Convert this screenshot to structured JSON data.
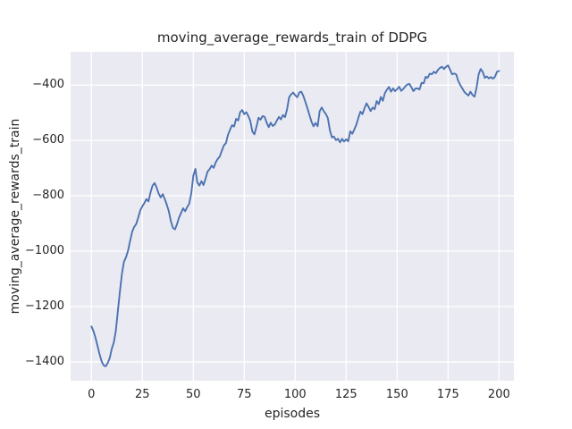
{
  "figure": {
    "title": "moving_average_rewards_train of DDPG",
    "xlabel": "episodes",
    "ylabel": "moving_average_rewards_train"
  },
  "chart_data": {
    "type": "line",
    "title": "moving_average_rewards_train of DDPG",
    "xlabel": "episodes",
    "ylabel": "moving_average_rewards_train",
    "style": "seaborn-darkgrid",
    "grid": true,
    "legend": "none",
    "xlim": [
      -10.2,
      207.3
    ],
    "ylim": [
      -1468,
      -280
    ],
    "x_tick_values": [
      0,
      25,
      50,
      75,
      100,
      125,
      150,
      175,
      200
    ],
    "x_tick_labels": [
      "0",
      "25",
      "50",
      "75",
      "100",
      "125",
      "150",
      "175",
      "200"
    ],
    "y_tick_values": [
      -400,
      -600,
      -800,
      -1000,
      -1200,
      -1400
    ],
    "y_tick_labels": [
      "−400",
      "−600",
      "−800",
      "−1000",
      "−1200",
      "−1400"
    ],
    "colors": {
      "line": "#4C72B0",
      "plot_background": "#EAEAF2",
      "gridline": "#FFFFFF",
      "text": "#262626",
      "figure_background": "#FFFFFF"
    },
    "series": [
      {
        "name": "moving_average_rewards_train",
        "color": "#4C72B0",
        "x": [
          0,
          1,
          2,
          3,
          4,
          5,
          6,
          7,
          8,
          9,
          10,
          11,
          12,
          13,
          14,
          15,
          16,
          17,
          18,
          19,
          20,
          21,
          22,
          23,
          24,
          25,
          26,
          27,
          28,
          29,
          30,
          31,
          32,
          33,
          34,
          35,
          36,
          37,
          38,
          39,
          40,
          41,
          42,
          43,
          44,
          45,
          46,
          47,
          48,
          49,
          50,
          51,
          52,
          53,
          54,
          55,
          56,
          57,
          58,
          59,
          60,
          61,
          62,
          63,
          64,
          65,
          66,
          67,
          68,
          69,
          70,
          71,
          72,
          73,
          74,
          75,
          76,
          77,
          78,
          79,
          80,
          81,
          82,
          83,
          84,
          85,
          86,
          87,
          88,
          89,
          90,
          91,
          92,
          93,
          94,
          95,
          96,
          97,
          98,
          99,
          100,
          101,
          102,
          103,
          104,
          105,
          106,
          107,
          108,
          109,
          110,
          111,
          112,
          113,
          114,
          115,
          116,
          117,
          118,
          119,
          120,
          121,
          122,
          123,
          124,
          125,
          126,
          127,
          128,
          129,
          130,
          131,
          132,
          133,
          134,
          135,
          136,
          137,
          138,
          139,
          140,
          141,
          142,
          143,
          144,
          145,
          146,
          147,
          148,
          149,
          150,
          151,
          152,
          153,
          154,
          155,
          156,
          157,
          158,
          159,
          160,
          161,
          162,
          163,
          164,
          165,
          166,
          167,
          168,
          169,
          170,
          171,
          172,
          173,
          174,
          175,
          176,
          177,
          178,
          179,
          180,
          181,
          182,
          183,
          184,
          185,
          186,
          187,
          188,
          189,
          190,
          191,
          192,
          193,
          194,
          195,
          196,
          197,
          198,
          199,
          200
        ],
        "y": [
          -1272,
          -1288,
          -1312,
          -1342,
          -1372,
          -1398,
          -1412,
          -1416,
          -1404,
          -1386,
          -1352,
          -1330,
          -1288,
          -1216,
          -1145,
          -1080,
          -1038,
          -1022,
          -998,
          -962,
          -930,
          -912,
          -902,
          -878,
          -852,
          -838,
          -826,
          -812,
          -820,
          -788,
          -763,
          -754,
          -770,
          -792,
          -806,
          -794,
          -812,
          -832,
          -856,
          -892,
          -916,
          -921,
          -903,
          -879,
          -862,
          -845,
          -856,
          -841,
          -828,
          -792,
          -728,
          -703,
          -752,
          -763,
          -747,
          -761,
          -738,
          -713,
          -704,
          -691,
          -699,
          -679,
          -667,
          -658,
          -637,
          -618,
          -610,
          -580,
          -562,
          -545,
          -550,
          -522,
          -528,
          -498,
          -490,
          -505,
          -498,
          -512,
          -530,
          -568,
          -578,
          -550,
          -518,
          -525,
          -512,
          -515,
          -536,
          -552,
          -536,
          -548,
          -542,
          -528,
          -515,
          -524,
          -508,
          -516,
          -488,
          -444,
          -434,
          -427,
          -437,
          -444,
          -427,
          -424,
          -439,
          -461,
          -484,
          -509,
          -533,
          -549,
          -537,
          -549,
          -494,
          -481,
          -494,
          -504,
          -519,
          -563,
          -589,
          -586,
          -599,
          -594,
          -607,
          -594,
          -604,
          -596,
          -603,
          -567,
          -576,
          -561,
          -543,
          -518,
          -496,
          -505,
          -484,
          -466,
          -479,
          -494,
          -481,
          -487,
          -458,
          -469,
          -443,
          -457,
          -429,
          -417,
          -407,
          -424,
          -412,
          -422,
          -415,
          -406,
          -421,
          -414,
          -405,
          -398,
          -396,
          -408,
          -422,
          -412,
          -412,
          -416,
          -392,
          -394,
          -370,
          -374,
          -359,
          -361,
          -352,
          -357,
          -346,
          -338,
          -334,
          -342,
          -334,
          -329,
          -345,
          -361,
          -358,
          -362,
          -385,
          -400,
          -412,
          -425,
          -432,
          -438,
          -424,
          -436,
          -442,
          -408,
          -362,
          -342,
          -352,
          -374,
          -369,
          -376,
          -371,
          -377,
          -370,
          -352,
          -349
        ]
      }
    ]
  }
}
